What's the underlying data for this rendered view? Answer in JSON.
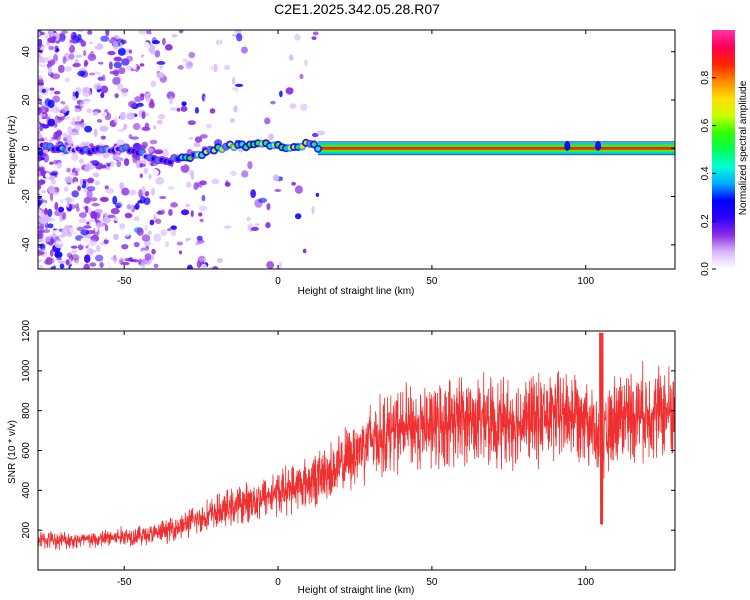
{
  "figure_title": "C2E1.2025.342.05.28.R07",
  "chart_data": [
    {
      "type": "heatmap",
      "title": "C2E1.2025.342.05.28.R07",
      "xlabel": "Height of straight line (km)",
      "ylabel": "Frequency (Hz)",
      "xlim": [
        -78,
        129
      ],
      "ylim": [
        -50,
        49
      ],
      "x_ticks": [
        -50,
        0,
        50,
        100
      ],
      "y_ticks": [
        -40,
        -20,
        0,
        20,
        40
      ],
      "colorbar": {
        "label": "Normalized spectral amplitude",
        "range": [
          0,
          1
        ],
        "ticks": [
          "0.0",
          "0.2",
          "0.4",
          "0.6",
          "0.8"
        ],
        "colormap": [
          "#ffffff",
          "#d9b8ff",
          "#8a2be2",
          "#2d00ff",
          "#0000ff",
          "#00aaff",
          "#00ffd5",
          "#00ff55",
          "#33ff00",
          "#ccff00",
          "#ffdd00",
          "#ff8800",
          "#ff2200",
          "#ff0055",
          "#ff33aa"
        ]
      },
      "signal_track": {
        "description_points_x_km": [
          -80,
          -70,
          -60,
          -50,
          -45,
          -40,
          -35,
          -30,
          -25,
          -20,
          -15,
          -10,
          -5,
          0,
          5,
          10,
          13,
          20,
          40,
          60,
          80,
          94,
          100,
          104,
          129
        ],
        "frequency_hz": [
          1,
          0,
          -1,
          0,
          -2,
          -4,
          -5,
          -4,
          -3,
          0,
          1,
          1,
          2,
          1,
          0,
          2,
          0,
          0,
          0,
          0,
          0,
          0,
          0,
          0,
          0
        ]
      },
      "tone_band_hz": [
        -1.5,
        1.5
      ],
      "tone_start_km": 13
    },
    {
      "type": "line",
      "xlabel": "Height of straight line (km)",
      "ylabel": "SNR (10 * v/v)",
      "xlim": [
        -78,
        129
      ],
      "ylim": [
        0,
        1200
      ],
      "x_ticks": [
        -50,
        0,
        50,
        100
      ],
      "y_ticks": [
        200,
        400,
        600,
        800,
        1000,
        1200
      ],
      "color": "#f03030",
      "series": [
        {
          "name": "SNR",
          "trend_x": [
            -78,
            -60,
            -50,
            -40,
            -30,
            -20,
            -10,
            0,
            10,
            20,
            30,
            40,
            50,
            60,
            70,
            80,
            90,
            100,
            105,
            110,
            120,
            129
          ],
          "trend_y": [
            150,
            150,
            170,
            180,
            230,
            290,
            340,
            390,
            440,
            520,
            660,
            710,
            720,
            760,
            740,
            750,
            770,
            800,
            600,
            780,
            790,
            800
          ]
        }
      ]
    }
  ]
}
